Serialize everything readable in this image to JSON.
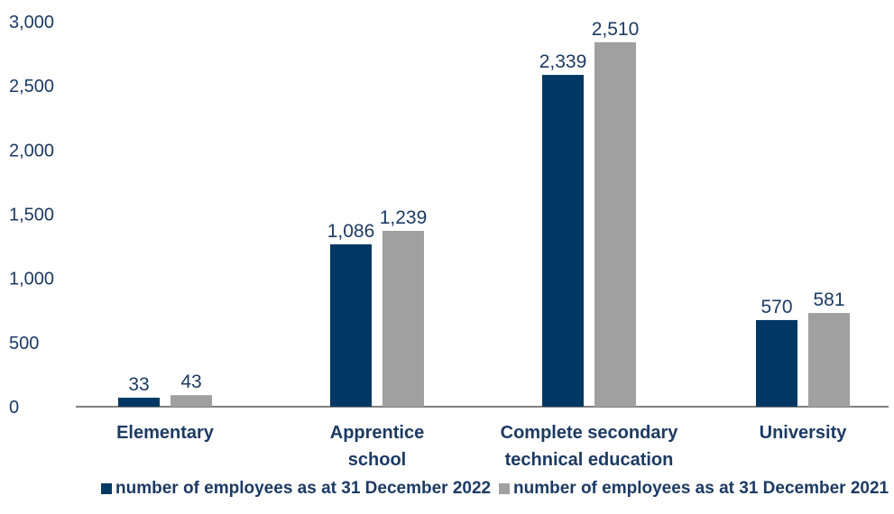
{
  "chart_data": {
    "type": "bar",
    "title": "",
    "xlabel": "",
    "ylabel": "",
    "categories": [
      [
        "Elementary"
      ],
      [
        "Apprentice",
        "school"
      ],
      [
        "Complete secondary",
        "technical education"
      ],
      [
        "University"
      ]
    ],
    "series": [
      {
        "name": "number of employees as at 31 December 2022",
        "color": "#003863",
        "values": [
          33,
          1086,
          2339,
          570
        ],
        "bar_values": [
          70,
          1265,
          2585,
          675
        ],
        "labels": [
          "33",
          "1,086",
          "2,339",
          "570"
        ]
      },
      {
        "name": "number of employees as at 31 December 2021",
        "color": "#a0a0a0",
        "values": [
          43,
          1239,
          2510,
          581
        ],
        "bar_values": [
          90,
          1370,
          2840,
          730
        ],
        "labels": [
          "43",
          "1,239",
          "2,510",
          "581"
        ]
      }
    ],
    "ylim": [
      0,
      3000
    ],
    "yticks": [
      0,
      500,
      1000,
      1500,
      2000,
      2500,
      3000
    ],
    "ytick_labels": [
      "0",
      "500",
      "1,000",
      "1,500",
      "2,000",
      "2,500",
      "3,000"
    ],
    "grid": false,
    "legend_position": "bottom"
  }
}
